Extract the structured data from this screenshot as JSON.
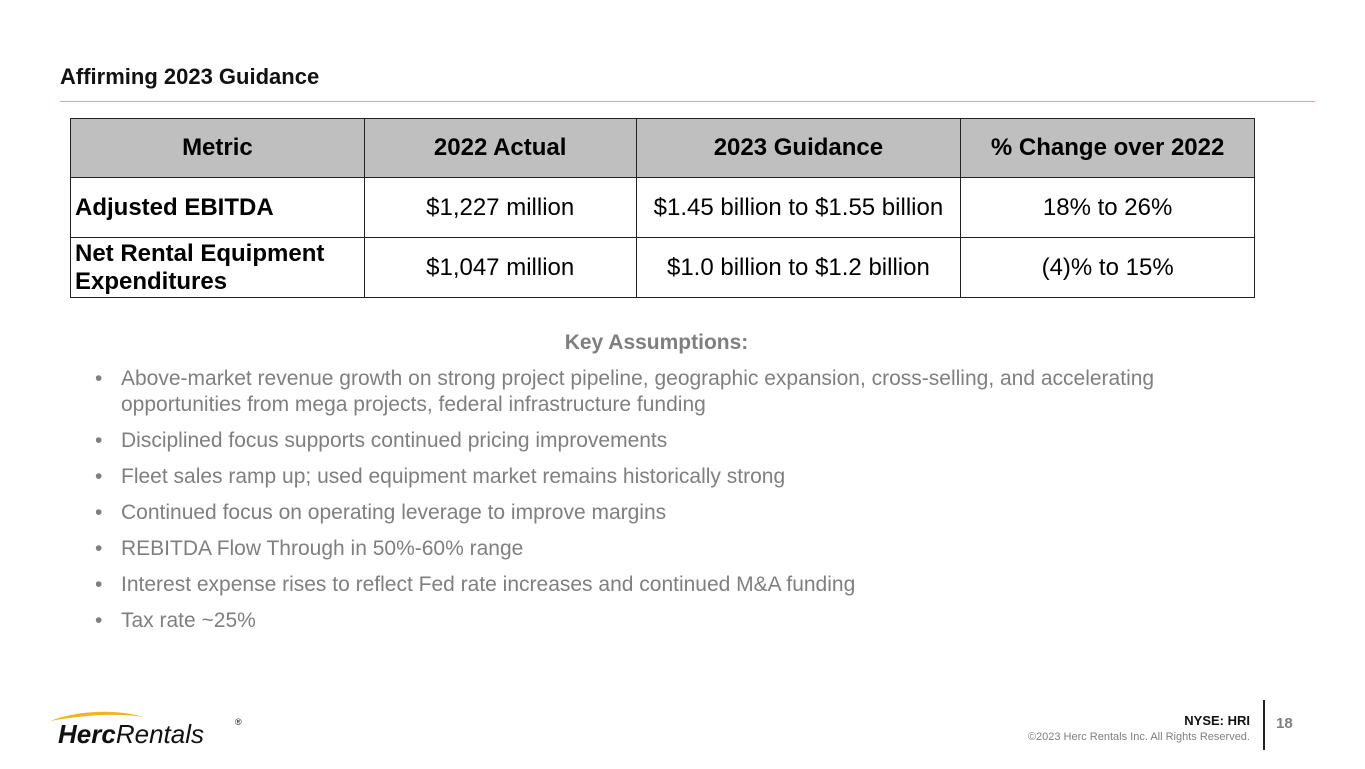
{
  "slide": {
    "title": "Affirming 2023 Guidance",
    "accent_color": "#f0b323"
  },
  "table": {
    "headers": [
      "Metric",
      "2022 Actual",
      "2023 Guidance",
      "% Change over 2022"
    ],
    "rows": [
      {
        "metric": "Adjusted EBITDA",
        "actual_2022": "$1,227 million",
        "guidance_2023": "$1.45 billion to $1.55 billion",
        "change": "18% to 26%"
      },
      {
        "metric_line1": "Net Rental Equipment",
        "metric_line2": "Expenditures",
        "actual_2022": "$1,047 million",
        "guidance_2023": "$1.0 billion to $1.2 billion",
        "change": "(4)% to 15%"
      }
    ]
  },
  "assumptions": {
    "title": "Key Assumptions:",
    "bullet": "•",
    "items": [
      "Above-market revenue growth on strong project pipeline, geographic expansion, cross-selling, and accelerating opportunities from mega projects, federal infrastructure funding",
      "Disciplined focus supports continued pricing improvements",
      "Fleet sales ramp up; used equipment market remains historically strong",
      "Continued focus on operating leverage to improve margins",
      "REBITDA Flow Through in 50%-60% range",
      "Interest expense rises to reflect Fed rate increases and continued M&A funding",
      "Tax rate ~25%"
    ]
  },
  "footer": {
    "logo_text_bold": "Herc",
    "logo_text_light": "Rentals",
    "logo_registered": "®",
    "ticker": "NYSE: HRI",
    "copyright": "©2023 Herc Rentals Inc.  All Rights Reserved.",
    "page_number": "18"
  }
}
